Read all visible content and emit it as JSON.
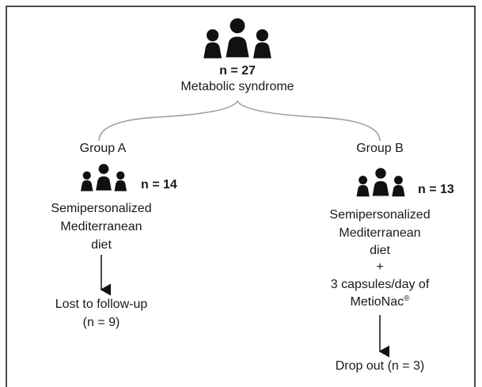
{
  "root": {
    "count": "n = 27",
    "label": "Metabolic syndrome"
  },
  "groups": [
    {
      "name": "Group A",
      "count": "n = 14",
      "intervention": [
        "Semipersonalized",
        "Mediterranean",
        "diet"
      ],
      "outcome": [
        "Lost to follow-up",
        "(n = 9)"
      ]
    },
    {
      "name": "Group B",
      "count": "n = 13",
      "intervention": [
        "Semipersonalized",
        "Mediterranean",
        "diet",
        "+",
        "3 capsules/day of"
      ],
      "product": {
        "name": "MetioNac",
        "mark": "®"
      },
      "outcome": [
        "Drop out (n = 3)"
      ]
    }
  ]
}
